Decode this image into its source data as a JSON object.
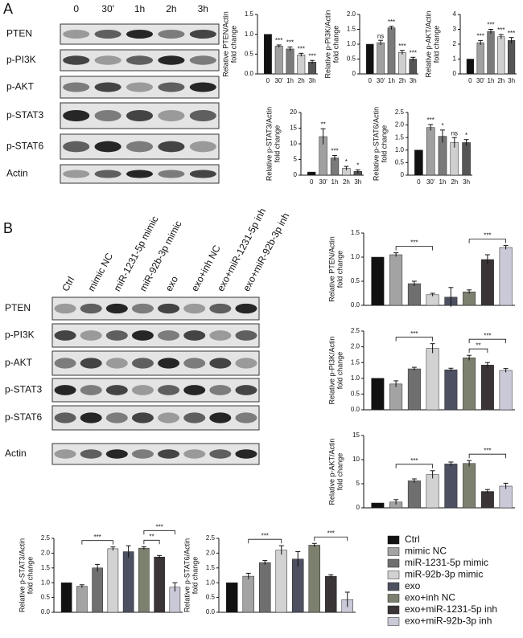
{
  "panel_labels": [
    "A",
    "B"
  ],
  "blots": [
    {
      "lanes": [
        "0",
        "30'",
        "1h",
        "2h",
        "3h"
      ],
      "rows": [
        "PTEN",
        "p-PI3K",
        "p-AKT",
        "p-STAT3",
        "p-STAT6",
        "Actin"
      ]
    },
    {
      "lanes": [
        "Ctrl",
        "mimic NC",
        "miR-1231-5p mimic",
        "miR-92b-3p mimic",
        "exo",
        "exo+inh NC",
        "exo+miR-1231-5p inh",
        "exo+miR-92b-3p inh"
      ],
      "rows": [
        "PTEN",
        "p-PI3K",
        "p-AKT",
        "p-STAT3",
        "p-STAT6",
        "Actin"
      ]
    }
  ],
  "legend": {
    "names": [
      "Ctrl",
      "mimic NC",
      "miR-1231-5p mimic",
      "miR-92b-3p mimic",
      "exo",
      "exo+inh NC",
      "exo+miR-1231-5p inh",
      "exo+miR-92b-3p inh"
    ],
    "colors": [
      "#111111",
      "#a3a3a3",
      "#6f6f6f",
      "#d2d2d2",
      "#4c5060",
      "#7c806e",
      "#3a3437",
      "#c9c9d8"
    ]
  },
  "chart_data": [
    {
      "type": "bar",
      "ylabel": [
        "Relative PTEN/Actin",
        "fold change"
      ],
      "categories": [
        "0",
        "30'",
        "1h",
        "2h",
        "3h"
      ],
      "colors": [
        "#111111",
        "#a0a0a0",
        "#7a7a7a",
        "#cfcfcf",
        "#555555"
      ],
      "values": [
        1.0,
        0.7,
        0.63,
        0.48,
        0.3
      ],
      "errors": [
        null,
        0.03,
        0.05,
        0.04,
        0.04
      ],
      "sig": [
        null,
        "***",
        "***",
        "***",
        "***"
      ],
      "ylim": [
        0,
        1.5
      ],
      "yticks": [
        {
          "value": 0,
          "label": "0.0"
        },
        0.5,
        {
          "value": 1,
          "label": "1.0"
        },
        1.5
      ]
    },
    {
      "type": "bar",
      "ylabel": [
        "Relative p-PI3K/Actin",
        "fold change"
      ],
      "categories": [
        "0",
        "30'",
        "1h",
        "2h",
        "3h"
      ],
      "colors": [
        "#111111",
        "#a0a0a0",
        "#7a7a7a",
        "#cfcfcf",
        "#555555"
      ],
      "values": [
        1.0,
        1.05,
        1.55,
        0.72,
        0.5
      ],
      "errors": [
        null,
        0.08,
        0.05,
        0.07,
        0.06
      ],
      "sig": [
        null,
        "ns",
        "***",
        "***",
        "***"
      ],
      "ylim": [
        0,
        2
      ],
      "yticks": [
        0,
        0.5,
        {
          "value": 1,
          "label": "1.0"
        },
        1.5,
        {
          "value": 2,
          "label": "2.0"
        }
      ]
    },
    {
      "type": "bar",
      "ylabel": [
        "Relative p-AKT/Actin",
        "fold change"
      ],
      "categories": [
        "0",
        "30'",
        "1h",
        "2h",
        "3h"
      ],
      "colors": [
        "#111111",
        "#a0a0a0",
        "#7a7a7a",
        "#cfcfcf",
        "#555555"
      ],
      "values": [
        1.0,
        2.1,
        2.85,
        2.5,
        2.25
      ],
      "errors": [
        null,
        0.15,
        0.15,
        0.15,
        0.2
      ],
      "sig": [
        null,
        "***",
        "***",
        "***",
        "***"
      ],
      "ylim": [
        0,
        4
      ],
      "yticks": [
        0,
        1,
        2,
        3,
        4
      ]
    },
    {
      "type": "bar",
      "ylabel": [
        "Relative p-STAT3/Actin",
        "fold change"
      ],
      "categories": [
        "0",
        "30'",
        "1h",
        "2h",
        "3h"
      ],
      "colors": [
        "#111111",
        "#a0a0a0",
        "#7a7a7a",
        "#cfcfcf",
        "#555555"
      ],
      "values": [
        1,
        12.3,
        5.5,
        2.2,
        1.2
      ],
      "errors": [
        null,
        2.5,
        0.8,
        0.6,
        0.5
      ],
      "sig": [
        null,
        "**",
        "***",
        "*",
        "*"
      ],
      "ylim": [
        0,
        20
      ],
      "yticks": [
        0,
        5,
        10,
        15,
        20
      ]
    },
    {
      "type": "bar",
      "ylabel": [
        "Relative p-STAT6/Actin",
        "fold change"
      ],
      "categories": [
        "0",
        "30'",
        "1h",
        "2h",
        "3h"
      ],
      "colors": [
        "#111111",
        "#a0a0a0",
        "#7a7a7a",
        "#cfcfcf",
        "#555555"
      ],
      "values": [
        1,
        1.9,
        1.55,
        1.3,
        1.3
      ],
      "errors": [
        null,
        0.12,
        0.25,
        0.2,
        0.12
      ],
      "sig": [
        null,
        "***",
        "*",
        "ns",
        "*"
      ],
      "ylim": [
        0,
        2.5
      ],
      "yticks": [
        0,
        0.5,
        {
          "value": 1,
          "label": "1.0"
        },
        1.5,
        {
          "value": 2,
          "label": "2.0"
        },
        2.5
      ]
    },
    {
      "type": "bar",
      "ylabel": [
        "Relative PTEN/Actin",
        "fold change"
      ],
      "values": [
        1.0,
        1.05,
        0.45,
        0.22,
        0.17,
        0.28,
        0.95,
        1.2
      ],
      "errors": [
        null,
        0.04,
        0.05,
        0.03,
        0.2,
        0.04,
        0.1,
        0.04
      ],
      "brackets": [
        {
          "label": "***",
          "from": "mimic NC",
          "to": "miR-92b-3p mimic"
        },
        {
          "label": "***",
          "from": "exo+inh NC",
          "to": "exo+miR-92b-3p inh"
        }
      ],
      "ylim": [
        0,
        1.5
      ],
      "yticks": [
        {
          "value": 0,
          "label": "0.0"
        },
        0.5,
        {
          "value": 1,
          "label": "1.0"
        },
        1.5
      ]
    },
    {
      "type": "bar",
      "ylabel": [
        "Relative p-PI3K/Actin",
        "fold change"
      ],
      "values": [
        1.0,
        0.82,
        1.3,
        1.95,
        1.27,
        1.65,
        1.42,
        1.25
      ],
      "errors": [
        null,
        0.1,
        0.05,
        0.15,
        0.05,
        0.08,
        0.08,
        0.06
      ],
      "brackets": [
        {
          "label": "***",
          "from": "mimic NC",
          "to": "miR-92b-3p mimic"
        },
        {
          "label": "**",
          "from": "exo+inh NC",
          "to": "exo+miR-1231-5p inh"
        },
        {
          "label": "***",
          "from": "exo+inh NC",
          "to": "exo+miR-92b-3p inh"
        }
      ],
      "ylim": [
        0,
        2.5
      ],
      "yticks": [
        {
          "value": 0,
          "label": "0.0"
        },
        0.5,
        {
          "value": 1,
          "label": "1.0"
        },
        1.5,
        {
          "value": 2,
          "label": "2.0"
        },
        2.5
      ]
    },
    {
      "type": "bar",
      "ylabel": [
        "Relative p-AKT/Actin",
        "fold change"
      ],
      "values": [
        1,
        1.2,
        5.6,
        6.9,
        9.1,
        9.2,
        3.4,
        4.5
      ],
      "errors": [
        null,
        0.5,
        0.4,
        0.8,
        0.4,
        0.6,
        0.4,
        0.6
      ],
      "brackets": [
        {
          "label": "***",
          "from": "mimic NC",
          "to": "miR-92b-3p mimic"
        },
        {
          "label": "***",
          "from": "exo+inh NC",
          "to": "exo+miR-92b-3p inh"
        }
      ],
      "ylim": [
        0,
        15
      ],
      "yticks": [
        0,
        5,
        10,
        15
      ]
    },
    {
      "type": "bar",
      "ylabel": [
        "Relative p-STAT3/Actin",
        "fold change"
      ],
      "values": [
        1,
        0.88,
        1.5,
        2.15,
        2.05,
        2.17,
        1.87,
        0.85
      ],
      "errors": [
        null,
        0.05,
        0.12,
        0.06,
        0.2,
        0.05,
        0.05,
        0.15
      ],
      "brackets": [
        {
          "label": "***",
          "from": "mimic NC",
          "to": "miR-92b-3p mimic"
        },
        {
          "label": "**",
          "from": "exo+inh NC",
          "to": "exo+miR-1231-5p inh"
        },
        {
          "label": "***",
          "from": "exo+inh NC",
          "to": "exo+miR-92b-3p inh"
        }
      ],
      "ylim": [
        0,
        2.5
      ],
      "yticks": [
        {
          "value": 0,
          "label": "0.0"
        },
        0.5,
        {
          "value": 1,
          "label": "1.0"
        },
        1.5,
        {
          "value": 2,
          "label": "2.0"
        },
        2.5
      ]
    },
    {
      "type": "bar",
      "ylabel": [
        "Relative p-STAT6/Actin",
        "fold change"
      ],
      "values": [
        1,
        1.22,
        1.68,
        2.1,
        1.8,
        2.27,
        1.22,
        0.43
      ],
      "errors": [
        null,
        0.1,
        0.07,
        0.15,
        0.25,
        0.06,
        0.05,
        0.25
      ],
      "brackets": [
        {
          "label": "***",
          "from": "mimic NC",
          "to": "miR-92b-3p mimic"
        },
        {
          "label": "***",
          "from": "exo+inh NC",
          "to": "exo+miR-92b-3p inh"
        }
      ],
      "ylim": [
        0,
        2.5
      ],
      "yticks": [
        {
          "value": 0,
          "label": "0.0"
        },
        0.5,
        {
          "value": 1,
          "label": "1.0"
        },
        1.5,
        {
          "value": 2,
          "label": "2.0"
        },
        2.5
      ]
    }
  ]
}
